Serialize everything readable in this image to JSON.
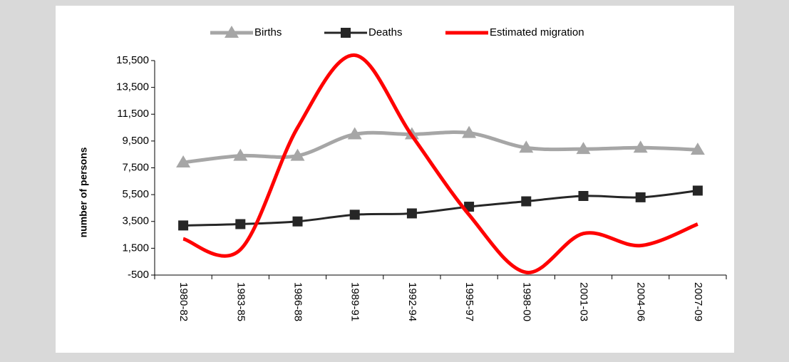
{
  "chart_data": {
    "type": "line",
    "y_label": "number of persons",
    "categories": [
      "1980-82",
      "1983-85",
      "1986-88",
      "1989-91",
      "1992-94",
      "1995-97",
      "1998-00",
      "2001-03",
      "2004-06",
      "2007-09"
    ],
    "series": [
      {
        "name": "Births",
        "color": "#a6a6a6",
        "marker": "triangle",
        "values": [
          7900,
          8400,
          8400,
          10000,
          10000,
          10100,
          9000,
          8900,
          9000,
          8850
        ]
      },
      {
        "name": "Deaths",
        "color": "#262626",
        "marker": "square",
        "values": [
          3200,
          3300,
          3500,
          4000,
          4100,
          4600,
          5000,
          5400,
          5300,
          5800
        ]
      },
      {
        "name": "Estimated migration",
        "color": "#ff0000",
        "marker": "none",
        "values": [
          2200,
          1400,
          10500,
          15900,
          9900,
          4000,
          -300,
          2600,
          1700,
          3300
        ]
      }
    ],
    "ylim": [
      -500,
      15500
    ],
    "yticks": [
      {
        "value": -500,
        "label": "-500"
      },
      {
        "value": 1500,
        "label": "1,500"
      },
      {
        "value": 3500,
        "label": "3,500"
      },
      {
        "value": 5500,
        "label": "5,500"
      },
      {
        "value": 7500,
        "label": "7,500"
      },
      {
        "value": 9500,
        "label": "9,500"
      },
      {
        "value": 11500,
        "label": "11,500"
      },
      {
        "value": 13500,
        "label": "13,500"
      },
      {
        "value": 15500,
        "label": "15,500"
      }
    ],
    "smooth": true,
    "legend": "top"
  }
}
